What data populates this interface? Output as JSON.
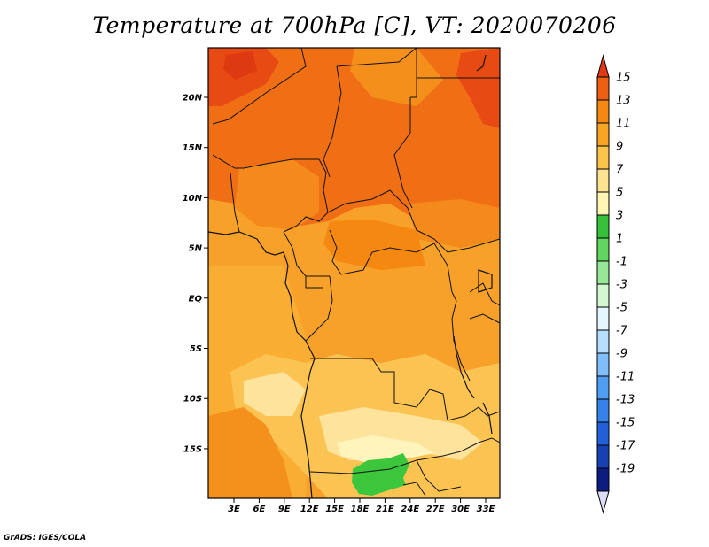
{
  "title": "Temperature at 700hPa [C], VT: 2020070206",
  "credit": "GrADS: IGES/COLA",
  "axes": {
    "lat_labels": [
      "20N",
      "15N",
      "10N",
      "5N",
      "EQ",
      "5S",
      "10S",
      "15S"
    ],
    "lon_labels": [
      "3E",
      "6E",
      "9E",
      "12E",
      "15E",
      "18E",
      "21E",
      "24E",
      "27E",
      "30E",
      "33E"
    ]
  },
  "colorbar": {
    "labels": [
      "15",
      "13",
      "11",
      "9",
      "7",
      "5",
      "3",
      "1",
      "-1",
      "-3",
      "-5",
      "-7",
      "-9",
      "-11",
      "-13",
      "-15",
      "-17",
      "-19"
    ],
    "colors": [
      "#e03a14",
      "#ef5f12",
      "#f58810",
      "#f7a522",
      "#fbc54c",
      "#fde28f",
      "#fef6b2",
      "#35c23a",
      "#60d560",
      "#96e796",
      "#d3f7d3",
      "#e6f6fd",
      "#b5defc",
      "#7fbefa",
      "#4e9ff4",
      "#3682ea",
      "#2160d7",
      "#1740b3",
      "#0c1c7f",
      "#dcdcf8"
    ]
  },
  "regions": [
    {
      "name": "northwest-hot",
      "value": "13-15",
      "color": "#e84a14"
    },
    {
      "name": "northeast-hot",
      "value": "13-15",
      "color": "#e84a14"
    },
    {
      "name": "sahel-band",
      "value": "11-13",
      "color": "#f06f14"
    },
    {
      "name": "central-africa",
      "value": "9-11",
      "color": "#f7a12a"
    },
    {
      "name": "southern-plateau",
      "value": "5-7",
      "color": "#fdd77e"
    },
    {
      "name": "cool-green-patch",
      "value": "1-3",
      "color": "#3cc63c"
    }
  ]
}
